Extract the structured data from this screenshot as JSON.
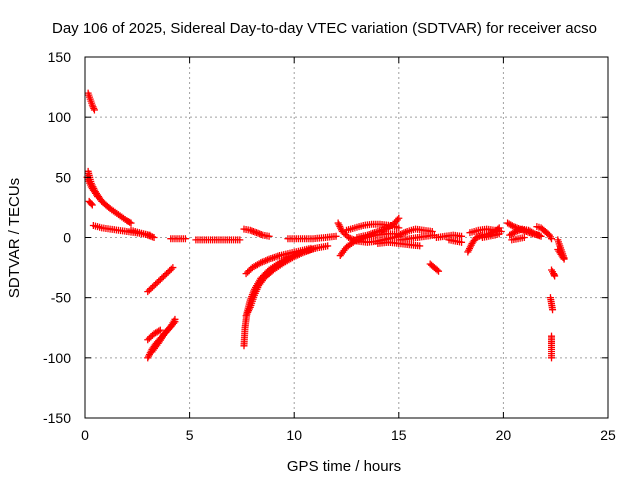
{
  "chart_data": {
    "type": "scatter",
    "title": "Day 106 of 2025, Sidereal Day-to-day VTEC variation (SDTVAR) for receiver acso",
    "xlabel": "GPS time / hours",
    "ylabel": "SDTVAR / TECUs",
    "xlim": [
      0,
      25
    ],
    "ylim": [
      -150,
      150
    ],
    "xticks": [
      0,
      5,
      10,
      15,
      20,
      25
    ],
    "yticks": [
      -150,
      -100,
      -50,
      0,
      50,
      100,
      150
    ],
    "grid": true,
    "marker": "+",
    "marker_color": "#ff0000",
    "segments": [
      {
        "name": "seg-01",
        "points": [
          [
            0.15,
            120
          ],
          [
            0.25,
            115
          ],
          [
            0.35,
            110
          ],
          [
            0.45,
            106
          ]
        ]
      },
      {
        "name": "seg-02",
        "points": [
          [
            0.15,
            55
          ],
          [
            0.3,
            45
          ],
          [
            0.5,
            38
          ],
          [
            0.8,
            30
          ],
          [
            1.2,
            24
          ],
          [
            1.6,
            19
          ],
          [
            2.0,
            14
          ],
          [
            2.2,
            12
          ]
        ]
      },
      {
        "name": "seg-03",
        "points": [
          [
            0.1,
            50
          ],
          [
            0.3,
            42
          ],
          [
            0.6,
            34
          ]
        ]
      },
      {
        "name": "seg-04",
        "points": [
          [
            0.2,
            30
          ],
          [
            0.35,
            27
          ]
        ]
      },
      {
        "name": "seg-05",
        "points": [
          [
            0.4,
            10
          ],
          [
            0.8,
            8
          ],
          [
            1.2,
            7
          ],
          [
            1.6,
            6
          ],
          [
            2.0,
            5
          ],
          [
            2.4,
            4
          ],
          [
            2.8,
            3
          ],
          [
            3.1,
            2
          ]
        ]
      },
      {
        "name": "seg-06",
        "points": [
          [
            2.2,
            6
          ],
          [
            2.6,
            4
          ],
          [
            3.0,
            2
          ],
          [
            3.3,
            0
          ]
        ]
      },
      {
        "name": "seg-07",
        "points": [
          [
            3.0,
            -45
          ],
          [
            3.3,
            -40
          ],
          [
            3.6,
            -35
          ],
          [
            3.9,
            -30
          ],
          [
            4.2,
            -25
          ]
        ]
      },
      {
        "name": "seg-08",
        "points": [
          [
            3.0,
            -100
          ],
          [
            3.2,
            -93
          ],
          [
            3.4,
            -88
          ],
          [
            3.7,
            -82
          ],
          [
            4.0,
            -76
          ],
          [
            4.3,
            -70
          ]
        ]
      },
      {
        "name": "seg-09",
        "points": [
          [
            3.2,
            -95
          ],
          [
            3.5,
            -88
          ],
          [
            3.8,
            -80
          ],
          [
            4.1,
            -74
          ],
          [
            4.3,
            -68
          ]
        ]
      },
      {
        "name": "seg-10",
        "points": [
          [
            3.0,
            -85
          ],
          [
            3.3,
            -80
          ],
          [
            3.6,
            -77
          ]
        ]
      },
      {
        "name": "seg-11",
        "points": [
          [
            4.1,
            -1
          ],
          [
            4.8,
            -1
          ]
        ]
      },
      {
        "name": "seg-12",
        "points": [
          [
            5.3,
            -2
          ],
          [
            5.8,
            -2
          ],
          [
            6.3,
            -2
          ],
          [
            6.8,
            -2
          ],
          [
            7.1,
            -2
          ],
          [
            7.4,
            -2
          ]
        ]
      },
      {
        "name": "seg-13",
        "points": [
          [
            7.6,
            7
          ],
          [
            7.9,
            6
          ],
          [
            8.2,
            4
          ],
          [
            8.5,
            2
          ],
          [
            8.8,
            1
          ]
        ]
      },
      {
        "name": "seg-14",
        "points": [
          [
            7.6,
            -90
          ],
          [
            7.65,
            -75
          ],
          [
            7.75,
            -62
          ],
          [
            7.9,
            -52
          ],
          [
            8.1,
            -43
          ],
          [
            8.4,
            -34
          ],
          [
            8.8,
            -27
          ],
          [
            9.3,
            -21
          ],
          [
            9.8,
            -16
          ],
          [
            10.4,
            -12
          ],
          [
            11.0,
            -9
          ],
          [
            11.6,
            -7
          ]
        ]
      },
      {
        "name": "seg-15",
        "points": [
          [
            7.7,
            -65
          ],
          [
            7.9,
            -58
          ],
          [
            8.1,
            -48
          ],
          [
            8.3,
            -40
          ],
          [
            8.6,
            -33
          ],
          [
            9.0,
            -27
          ],
          [
            9.5,
            -21
          ],
          [
            10.0,
            -16
          ],
          [
            10.5,
            -12
          ],
          [
            11.0,
            -9
          ]
        ]
      },
      {
        "name": "seg-16",
        "points": [
          [
            7.7,
            -30
          ],
          [
            8.0,
            -25
          ],
          [
            8.4,
            -21
          ],
          [
            8.8,
            -18
          ],
          [
            9.3,
            -15
          ],
          [
            9.8,
            -13
          ],
          [
            10.3,
            -11
          ],
          [
            10.8,
            -9
          ]
        ]
      },
      {
        "name": "seg-17",
        "points": [
          [
            9.7,
            -1
          ],
          [
            10.3,
            -1
          ],
          [
            10.9,
            -1
          ],
          [
            11.5,
            0
          ],
          [
            12.0,
            1
          ]
        ]
      },
      {
        "name": "seg-18",
        "points": [
          [
            12.1,
            12
          ],
          [
            12.3,
            5
          ],
          [
            12.6,
            0
          ],
          [
            13.0,
            -3
          ],
          [
            13.5,
            -4
          ],
          [
            14.0,
            -3
          ],
          [
            14.5,
            -1
          ],
          [
            15.0,
            1
          ]
        ]
      },
      {
        "name": "seg-19",
        "points": [
          [
            12.2,
            -15
          ],
          [
            12.5,
            -8
          ],
          [
            12.9,
            -3
          ],
          [
            13.4,
            0
          ],
          [
            13.9,
            2
          ],
          [
            14.4,
            3
          ],
          [
            14.9,
            3
          ]
        ]
      },
      {
        "name": "seg-20",
        "points": [
          [
            12.5,
            6
          ],
          [
            12.9,
            8
          ],
          [
            13.3,
            10
          ],
          [
            13.7,
            11
          ],
          [
            14.1,
            11
          ],
          [
            14.6,
            10
          ],
          [
            15.0,
            8
          ]
        ]
      },
      {
        "name": "seg-21",
        "points": [
          [
            13.0,
            0
          ],
          [
            13.5,
            2
          ],
          [
            14.0,
            5
          ],
          [
            14.5,
            8
          ],
          [
            14.8,
            12
          ],
          [
            15.0,
            16
          ]
        ]
      },
      {
        "name": "seg-22",
        "points": [
          [
            15.0,
            2
          ],
          [
            15.4,
            5
          ],
          [
            15.8,
            7
          ],
          [
            16.2,
            6
          ],
          [
            16.6,
            5
          ]
        ]
      },
      {
        "name": "seg-23",
        "points": [
          [
            15.1,
            -2
          ],
          [
            15.5,
            -1
          ],
          [
            15.9,
            0
          ],
          [
            16.3,
            1
          ],
          [
            16.7,
            2
          ]
        ]
      },
      {
        "name": "seg-24",
        "points": [
          [
            14.0,
            -5
          ],
          [
            14.5,
            -4
          ],
          [
            15.0,
            -5
          ],
          [
            15.5,
            -6
          ],
          [
            16.0,
            -7
          ]
        ]
      },
      {
        "name": "seg-25",
        "points": [
          [
            16.5,
            -22
          ],
          [
            16.7,
            -25
          ],
          [
            16.9,
            -28
          ]
        ]
      },
      {
        "name": "seg-26",
        "points": [
          [
            16.8,
            0
          ],
          [
            17.2,
            1
          ],
          [
            17.6,
            2
          ],
          [
            18.0,
            1
          ]
        ]
      },
      {
        "name": "seg-27",
        "points": [
          [
            17.4,
            -2
          ],
          [
            17.7,
            -3
          ],
          [
            18.0,
            -4
          ]
        ]
      },
      {
        "name": "seg-28",
        "points": [
          [
            18.3,
            -12
          ],
          [
            18.5,
            -5
          ],
          [
            18.7,
            0
          ],
          [
            19.0,
            2
          ],
          [
            19.3,
            3
          ],
          [
            19.6,
            5
          ],
          [
            19.8,
            8
          ]
        ]
      },
      {
        "name": "seg-29",
        "points": [
          [
            18.4,
            4
          ],
          [
            18.8,
            6
          ],
          [
            19.2,
            7
          ],
          [
            19.6,
            6
          ],
          [
            19.9,
            5
          ]
        ]
      },
      {
        "name": "seg-30",
        "points": [
          [
            19.0,
            0
          ],
          [
            19.3,
            1
          ],
          [
            19.6,
            2
          ],
          [
            19.8,
            3
          ]
        ]
      },
      {
        "name": "seg-31",
        "points": [
          [
            20.2,
            12
          ],
          [
            20.5,
            9
          ],
          [
            20.8,
            7
          ],
          [
            21.1,
            5
          ],
          [
            21.4,
            3
          ],
          [
            21.7,
            2
          ]
        ]
      },
      {
        "name": "seg-32",
        "points": [
          [
            20.3,
            2
          ],
          [
            20.6,
            5
          ],
          [
            20.9,
            7
          ],
          [
            21.2,
            6
          ],
          [
            21.5,
            3
          ],
          [
            21.8,
            1
          ]
        ]
      },
      {
        "name": "seg-33",
        "points": [
          [
            20.4,
            -2
          ],
          [
            20.7,
            -1
          ],
          [
            21.0,
            0
          ]
        ]
      },
      {
        "name": "seg-34",
        "points": [
          [
            21.6,
            9
          ],
          [
            21.8,
            8
          ],
          [
            22.0,
            5
          ],
          [
            22.2,
            2
          ],
          [
            22.3,
            -1
          ]
        ]
      },
      {
        "name": "seg-35",
        "points": [
          [
            22.3,
            -27
          ],
          [
            22.4,
            -30
          ],
          [
            22.45,
            -32
          ]
        ]
      },
      {
        "name": "seg-36",
        "points": [
          [
            22.25,
            -50
          ],
          [
            22.3,
            -55
          ],
          [
            22.35,
            -60
          ]
        ]
      },
      {
        "name": "seg-37",
        "points": [
          [
            22.3,
            -82
          ],
          [
            22.3,
            -88
          ],
          [
            22.3,
            -93
          ],
          [
            22.3,
            -100
          ]
        ]
      },
      {
        "name": "seg-38",
        "points": [
          [
            22.6,
            -2
          ],
          [
            22.7,
            -7
          ],
          [
            22.8,
            -12
          ],
          [
            22.9,
            -17
          ]
        ]
      },
      {
        "name": "seg-39",
        "points": [
          [
            22.6,
            -10
          ],
          [
            22.75,
            -14
          ],
          [
            22.9,
            -18
          ]
        ]
      }
    ]
  }
}
